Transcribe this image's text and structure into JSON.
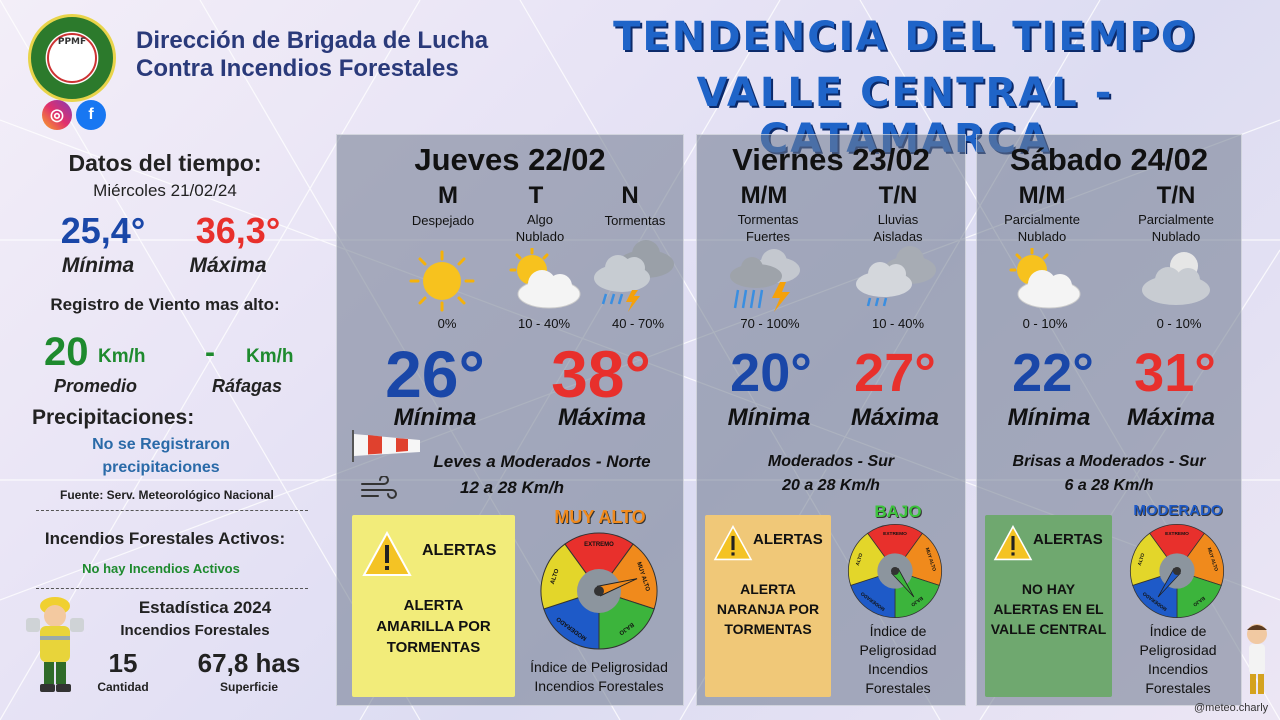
{
  "header": {
    "logo_text": "PPMF",
    "logo_ring_top": "BRIGADA DE LUCHA CONTRA INCENDIOS FORESTALES",
    "logo_ring_bottom": "CATAMARCA",
    "org_line1": "Dirección de Brigada de Lucha",
    "org_line2": "Contra Incendios Forestales",
    "title_line1": "TENDENCIA DEL TIEMPO",
    "title_line2": "VALLE CENTRAL - CATAMARCA"
  },
  "left": {
    "datos_title": "Datos del tiempo:",
    "datos_date": "Miércoles 21/02/24",
    "min_value": "25,4°",
    "min_label": "Mínima",
    "max_value": "36,3°",
    "max_label": "Máxima",
    "wind_title": "Registro de Viento mas alto:",
    "wind_avg": "20",
    "wind_unit": "Km/h",
    "wind_avg_label": "Promedio",
    "wind_gust": "-",
    "wind_gust_unit": "Km/h",
    "wind_gust_label": "Ráfagas",
    "precip_title": "Precipitaciones:",
    "precip_line1": "No se Registraron",
    "precip_line2": "precipitaciones",
    "source": "Fuente: Serv. Meteorológico Nacional",
    "fires_title": "Incendios Forestales Activos:",
    "fires_value": "No hay Incendios Activos",
    "stats_title": "Estadística 2024",
    "stats_subtitle": "Incendios Forestales",
    "stats_count": "15",
    "stats_count_label": "Cantidad",
    "stats_area": "67,8 has",
    "stats_area_label": "Superficie"
  },
  "days": [
    {
      "title": "Jueves 22/02",
      "periods": [
        {
          "label": "M",
          "cond": "Despejado",
          "pct": "0%",
          "icon": "sun-icon"
        },
        {
          "label": "T",
          "cond": "Algo Nublado",
          "pct": "10 - 40%",
          "icon": "sun-cloud-icon"
        },
        {
          "label": "N",
          "cond": "Tormentas",
          "pct": "40 - 70%",
          "icon": "storm-icon"
        }
      ],
      "min": "26°",
      "max": "38°",
      "min_label": "Mínima",
      "max_label": "Máxima",
      "wind_line1": "Leves a Moderados - Norte",
      "wind_line2": "12 a 28 Km/h",
      "alert_title": "ALERTAS",
      "alert_text": [
        "ALERTA",
        "AMARILLA POR",
        "TORMENTAS"
      ],
      "alert_color": "#f2ec7a",
      "danger_level": "MUY ALTO",
      "danger_color": "#f08a1c",
      "index_text": [
        "Índice de Peligrosidad",
        "Incendios Forestales"
      ]
    },
    {
      "title": "Viernes 23/02",
      "periods": [
        {
          "label": "M/M",
          "cond": "Tormentas Fuertes",
          "pct": "70 - 100%",
          "icon": "heavy-storm-icon"
        },
        {
          "label": "T/N",
          "cond": "Lluvias Aisladas",
          "pct": "10 - 40%",
          "icon": "rain-cloud-icon"
        }
      ],
      "min": "20°",
      "max": "27°",
      "min_label": "Mínima",
      "max_label": "Máxima",
      "wind_line1": "Moderados - Sur",
      "wind_line2": "20 a 28 Km/h",
      "alert_title": "ALERTAS",
      "alert_text": [
        "ALERTA",
        "NARANJA POR",
        "TORMENTAS"
      ],
      "alert_color": "#f0c878",
      "danger_level": "BAJO",
      "danger_color": "#3cc43c",
      "index_text": [
        "Índice de",
        "Peligrosidad",
        "Incendios",
        "Forestales"
      ]
    },
    {
      "title": "Sábado 24/02",
      "periods": [
        {
          "label": "M/M",
          "cond": "Parcialmente Nublado",
          "pct": "0 - 10%",
          "icon": "sun-cloud-icon"
        },
        {
          "label": "T/N",
          "cond": "Parcialmente Nublado",
          "pct": "0 - 10%",
          "icon": "moon-cloud-icon"
        }
      ],
      "min": "22°",
      "max": "31°",
      "min_label": "Mínima",
      "max_label": "Máxima",
      "wind_line1": "Brisas a Moderados - Sur",
      "wind_line2": "6 a 28 Km/h",
      "alert_title": "ALERTAS",
      "alert_text": [
        "NO HAY",
        "ALERTAS EN EL",
        "VALLE CENTRAL"
      ],
      "alert_color": "#6fa86f",
      "danger_level": "MODERADO",
      "danger_color": "#1e5ac8",
      "index_text": [
        "Índice de",
        "Peligrosidad",
        "Incendios",
        "Forestales"
      ]
    }
  ],
  "gauge_labels": [
    "EXTREMO",
    "MUY ALTO",
    "BAJO",
    "MODERADO",
    "ALTO"
  ],
  "footer": {
    "credit": "@meteo.charly"
  }
}
